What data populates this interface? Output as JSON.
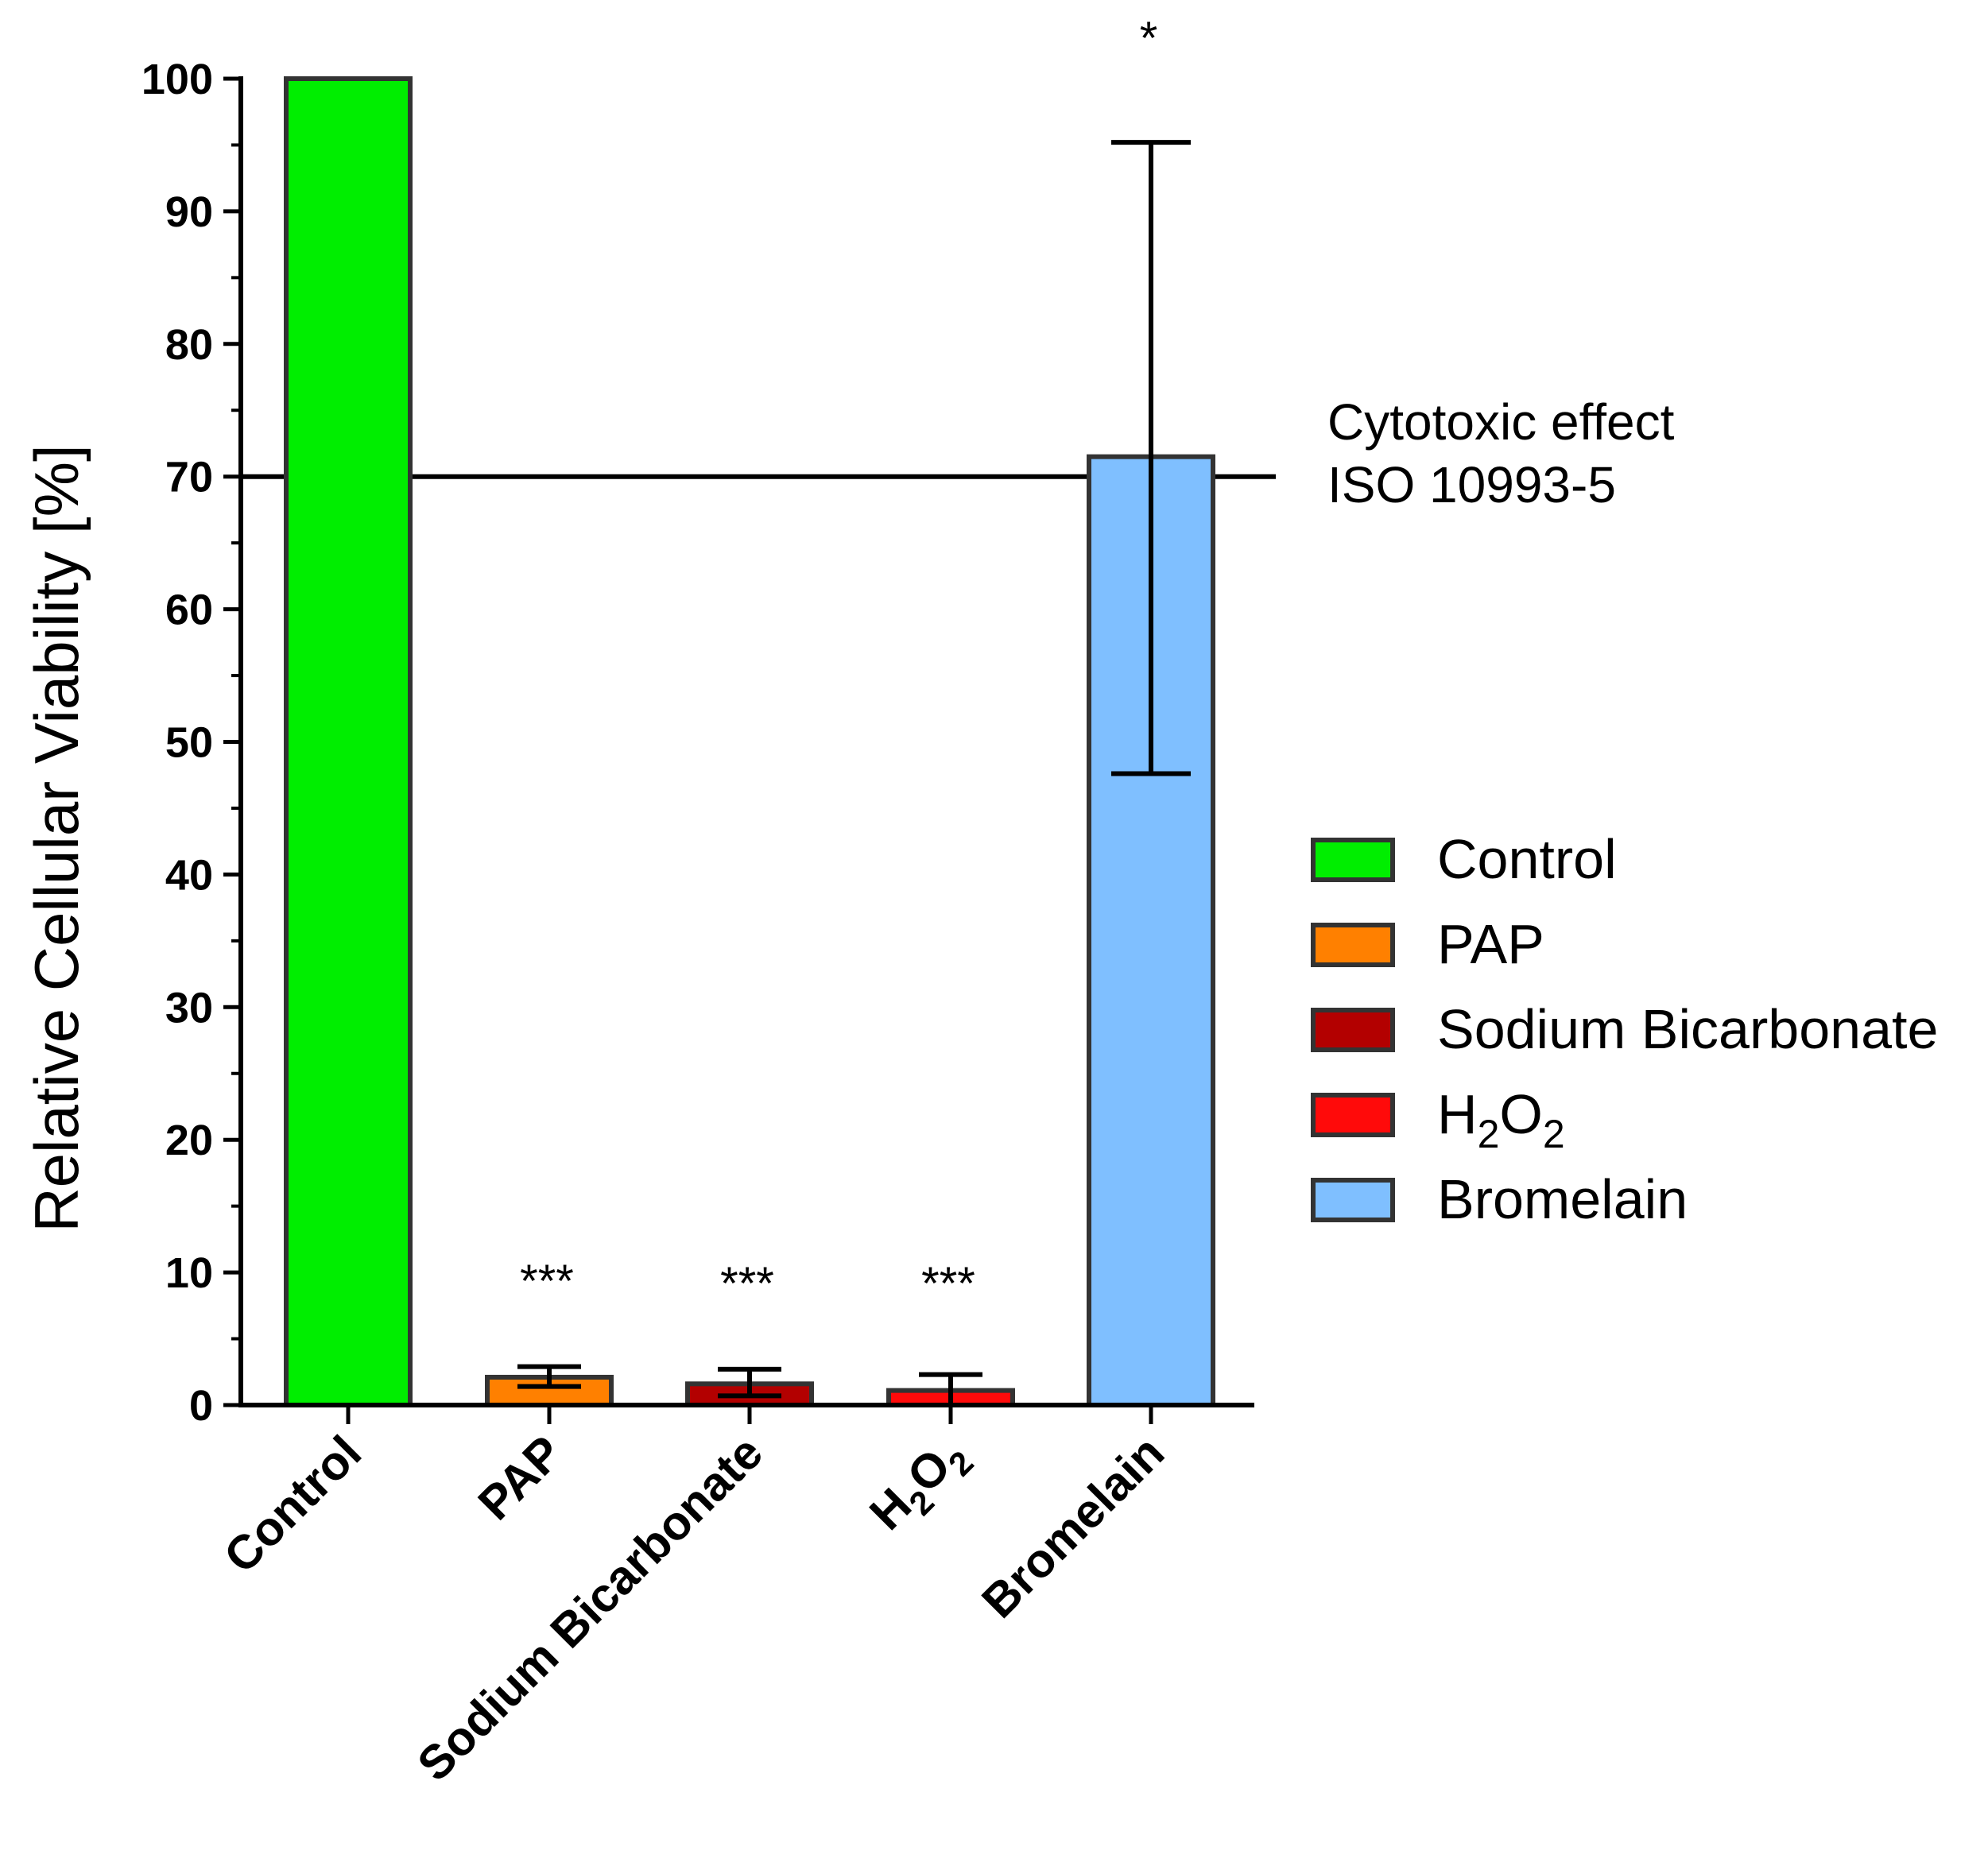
{
  "chart_data": {
    "type": "bar",
    "title": "",
    "xlabel": "",
    "ylabel": "Relative Cellular Viability [%]",
    "ylim": [
      0,
      100
    ],
    "yticks": [
      0,
      10,
      20,
      30,
      40,
      50,
      60,
      70,
      80,
      90,
      100
    ],
    "categories": [
      {
        "label": "Control",
        "value": 100,
        "err_low": 100,
        "err_high": 100,
        "sig": "",
        "color": "#00ee00"
      },
      {
        "label": "PAP",
        "value": 2.1,
        "err_low": 1.4,
        "err_high": 2.9,
        "sig": "***",
        "color": "#ff8000"
      },
      {
        "label": "Sodium Bicarbonate",
        "value": 1.6,
        "err_low": 0.7,
        "err_high": 2.7,
        "sig": "***",
        "color": "#b30000"
      },
      {
        "label": "H2O2",
        "label_main": "H",
        "label_sub1": "2",
        "label_mid": "O",
        "label_sub2": "2",
        "value": 1.1,
        "err_low": 0.0,
        "err_high": 2.3,
        "sig": "***",
        "color": "#ff0a0a"
      },
      {
        "label": "Bromelain",
        "value": 71.5,
        "err_low": 47.6,
        "err_high": 95.2,
        "sig": "*",
        "color": "#7fbfff"
      }
    ],
    "reference_line": {
      "value": 70,
      "label_line1": "Cytotoxic effect",
      "label_line2": "ISO 10993-5"
    },
    "legend": {
      "position": "right",
      "entries": [
        {
          "label": "Control",
          "color": "#00ee00"
        },
        {
          "label": "PAP",
          "color": "#ff8000"
        },
        {
          "label": "Sodium Bicarbonate",
          "color": "#b30000"
        },
        {
          "label": "H2O2",
          "label_main": "H",
          "label_sub1": "2",
          "label_mid": "O",
          "label_sub2": "2",
          "color": "#ff0a0a"
        },
        {
          "label": "Bromelain",
          "color": "#7fbfff"
        }
      ]
    }
  }
}
